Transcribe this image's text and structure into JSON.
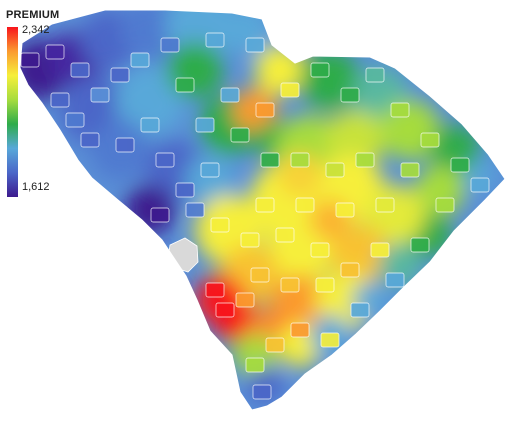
{
  "legend": {
    "title": "PREMIUM",
    "max_label": "2,342",
    "min_label": "1,612",
    "gradient_colors": [
      "#f8141c",
      "#fb9a2f",
      "#f6ef3a",
      "#a6dc3e",
      "#2eac4a",
      "#58a8d9",
      "#4b66c8",
      "#3d1a8e"
    ]
  },
  "map": {
    "region": "South Carolina",
    "no_data_color": "#d9d9d9",
    "border_color": "#ffffff"
  }
}
